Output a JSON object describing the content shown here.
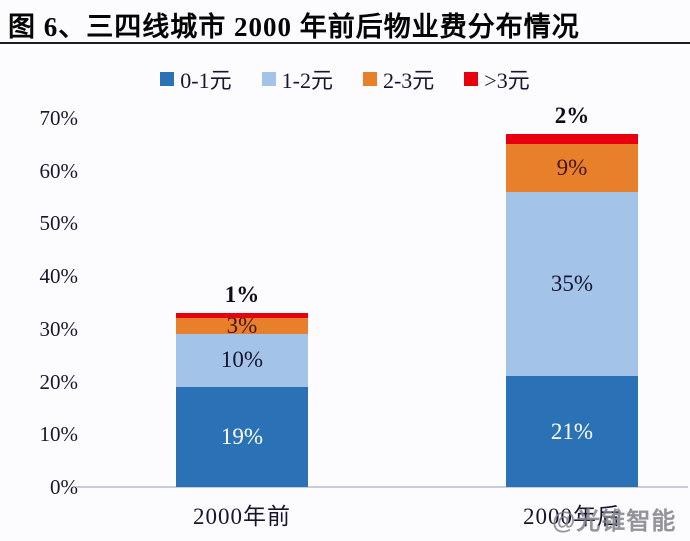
{
  "title": "图 6、三四线城市 2000 年前后物业费分布情况",
  "y_axis": {
    "ticks": [
      "70%",
      "60%",
      "50%",
      "40%",
      "30%",
      "20%",
      "10%",
      "0%"
    ]
  },
  "chart_data": {
    "type": "bar",
    "stacked": true,
    "title": "三四线城市2000年前后物业费分布情况",
    "categories": [
      "2000年前",
      "2000年后"
    ],
    "series": [
      {
        "name": "0-1元",
        "color": "#2A72B5",
        "label_color": "#ffffff",
        "values": [
          19,
          21
        ]
      },
      {
        "name": "1-2元",
        "color": "#A3C3E8",
        "label_color": "#16162e",
        "values": [
          10,
          35
        ]
      },
      {
        "name": "2-3元",
        "color": "#E8802B",
        "label_color": "#431418",
        "values": [
          3,
          9
        ]
      },
      {
        "name": ">3元",
        "color": "#E8000F",
        "label_color": "#0d0d1a",
        "values": [
          1,
          2
        ],
        "label_above_bar": true
      }
    ],
    "unit": "%",
    "ylim": [
      0,
      70
    ],
    "y_ticks_percent": [
      70,
      60,
      50,
      40,
      30,
      20,
      10,
      0
    ],
    "grid": false,
    "legend_position": "top"
  },
  "watermark": "@光锥智能"
}
